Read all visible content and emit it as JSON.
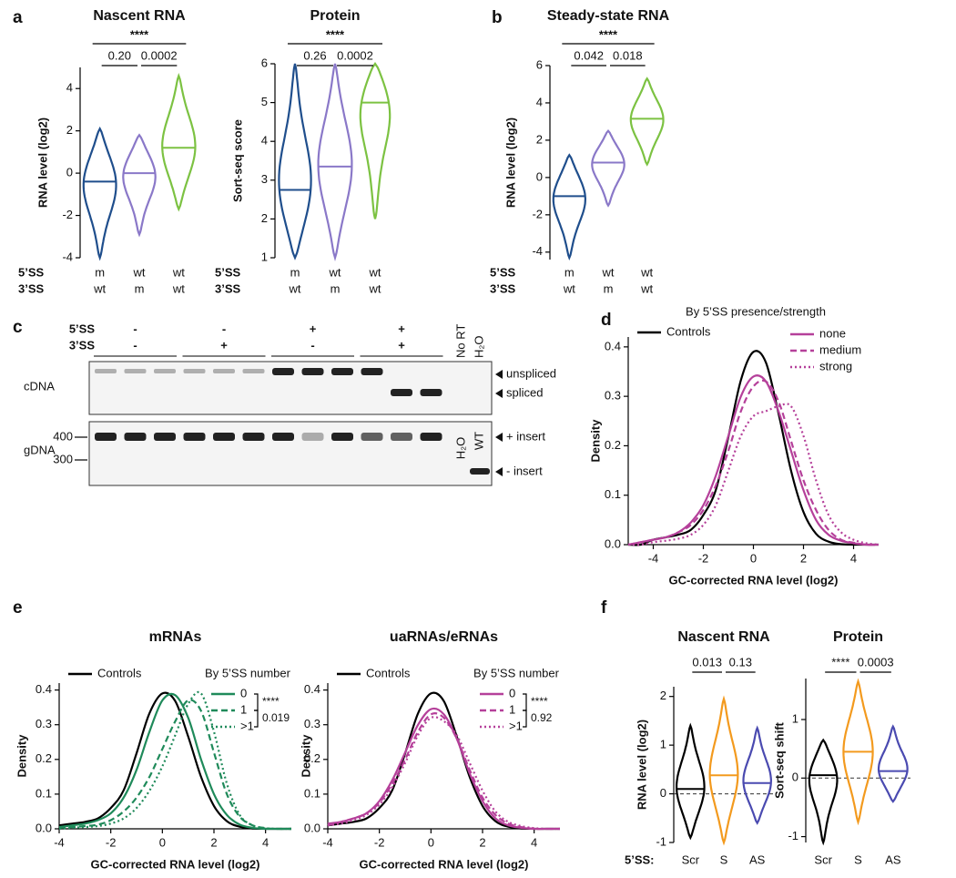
{
  "panel_letters": [
    "a",
    "b",
    "c",
    "d",
    "e",
    "f"
  ],
  "chart_data": [
    {
      "type": "violin",
      "title": "Nascent RNA",
      "y_label": "RNA level (log2)",
      "category_rows": [
        {
          "label": "5’SS",
          "labels": [
            "m",
            "wt",
            "wt"
          ]
        },
        {
          "label": "3’SS",
          "labels": [
            "wt",
            "m",
            "wt"
          ]
        }
      ],
      "colors": [
        "#1f4e8c",
        "#8a78c8",
        "#7cc242"
      ],
      "values": [
        -0.4,
        0,
        1.2
      ],
      "low": [
        -4,
        -2.9,
        -1.7
      ],
      "high": [
        2.1,
        1.8,
        4.6
      ],
      "ylim": [
        -4,
        5
      ],
      "yticks": [
        -4,
        -2,
        0,
        2,
        4
      ],
      "overall_annotation": "****",
      "pair_annotations": [
        "0.20",
        "0.0002"
      ]
    },
    {
      "type": "violin",
      "title": "Protein",
      "y_label": "Sort-seq score",
      "category_rows": [
        {
          "label": "5’SS",
          "labels": [
            "m",
            "wt",
            "wt"
          ]
        },
        {
          "label": "3’SS",
          "labels": [
            "wt",
            "m",
            "wt"
          ]
        }
      ],
      "colors": [
        "#1f4e8c",
        "#8a78c8",
        "#7cc242"
      ],
      "values": [
        2.75,
        3.35,
        5.0
      ],
      "low": [
        1,
        1,
        2.0
      ],
      "high": [
        6,
        6,
        6
      ],
      "ylim": [
        1,
        6
      ],
      "yticks": [
        1,
        2,
        3,
        4,
        5,
        6
      ],
      "overall_annotation": "****",
      "pair_annotations": [
        "0.26",
        "0.0002"
      ]
    },
    {
      "type": "violin",
      "title": "Steady-state RNA",
      "y_label": "RNA level (log2)",
      "category_rows": [
        {
          "label": "5’SS",
          "labels": [
            "m",
            "wt",
            "wt"
          ]
        },
        {
          "label": "3’SS",
          "labels": [
            "wt",
            "m",
            "wt"
          ]
        }
      ],
      "colors": [
        "#1f4e8c",
        "#8a78c8",
        "#7cc242"
      ],
      "values": [
        -1.0,
        0.8,
        3.15
      ],
      "low": [
        -4.3,
        -1.5,
        0.7
      ],
      "high": [
        1.2,
        2.5,
        5.3
      ],
      "ylim": [
        -4.4,
        6
      ],
      "yticks": [
        -4,
        -2,
        0,
        2,
        4,
        6
      ],
      "overall_annotation": "****",
      "pair_annotations": [
        "0.042",
        "0.018"
      ]
    },
    {
      "type": "gel",
      "row_labels": [
        "5’SS",
        "3’SS"
      ],
      "five_ss": [
        "-",
        "-",
        "+",
        "+"
      ],
      "three_ss": [
        "-",
        "+",
        "-",
        "+"
      ],
      "lane_labels": [
        "No RT",
        "H₂O"
      ],
      "blot_labels": [
        "cDNA",
        "gDNA"
      ],
      "marker_labels": [
        400,
        300
      ],
      "band_labels": [
        "unspliced",
        "spliced",
        "+ insert",
        "- insert"
      ],
      "inner_lane_labels": [
        "H₂O",
        "WT"
      ]
    },
    {
      "type": "density",
      "legend_title": "By 5’SS presence/strength",
      "x_label": "GC-corrected RNA level (log2)",
      "y_label": "Density",
      "x": [
        -5,
        -4.5,
        -4,
        -3.5,
        -3,
        -2.5,
        -2,
        -1.5,
        -1,
        -0.5,
        0,
        0.5,
        1,
        1.5,
        2,
        2.5,
        3,
        3.5,
        4,
        4.5,
        5
      ],
      "series": [
        {
          "name": "Controls",
          "color": "#000000",
          "style": "solid",
          "values": [
            0,
            0,
            0.01,
            0.015,
            0.02,
            0.03,
            0.06,
            0.111,
            0.218,
            0.333,
            0.39,
            0.368,
            0.266,
            0.15,
            0.066,
            0.022,
            0.006,
            0.001,
            0,
            0,
            0
          ]
        },
        {
          "name": "none",
          "color": "#b5409a",
          "style": "solid",
          "values": [
            0,
            0.005,
            0.01,
            0.015,
            0.025,
            0.045,
            0.08,
            0.14,
            0.22,
            0.3,
            0.34,
            0.33,
            0.27,
            0.19,
            0.11,
            0.05,
            0.02,
            0.008,
            0.003,
            0,
            0
          ]
        },
        {
          "name": "medium",
          "color": "#b5409a",
          "style": "dashed",
          "values": [
            0,
            0.005,
            0.01,
            0.015,
            0.025,
            0.04,
            0.07,
            0.12,
            0.19,
            0.27,
            0.32,
            0.33,
            0.29,
            0.21,
            0.13,
            0.07,
            0.03,
            0.01,
            0.004,
            0,
            0
          ]
        },
        {
          "name": "strong",
          "color": "#b5409a",
          "style": "dotted",
          "values": [
            0,
            0,
            0.005,
            0.008,
            0.012,
            0.02,
            0.04,
            0.08,
            0.15,
            0.22,
            0.26,
            0.27,
            0.28,
            0.28,
            0.22,
            0.13,
            0.06,
            0.025,
            0.01,
            0.003,
            0
          ]
        }
      ],
      "xlim": [
        -5,
        5
      ],
      "xticks": [
        -4,
        -2,
        0,
        2,
        4
      ],
      "ylim": [
        0,
        0.42
      ],
      "yticks": [
        {
          "value": 0,
          "label": "0.0"
        },
        0.1,
        0.2,
        0.3,
        0.4
      ]
    },
    {
      "type": "density",
      "title": "mRNAs",
      "legend_title": "By 5’SS number",
      "x_label": "GC-corrected RNA level (log2)",
      "y_label": "Density",
      "x": [
        -4,
        -3.5,
        -3,
        -2.5,
        -2,
        -1.5,
        -1,
        -0.5,
        0,
        0.5,
        1,
        1.5,
        2,
        2.5,
        3,
        3.5,
        4,
        4.5,
        5
      ],
      "series": [
        {
          "name": "Controls",
          "color": "#000000",
          "style": "solid",
          "values": [
            0.01,
            0.015,
            0.02,
            0.03,
            0.06,
            0.111,
            0.218,
            0.333,
            0.39,
            0.368,
            0.266,
            0.15,
            0.066,
            0.022,
            0.006,
            0.001,
            0,
            0,
            0
          ]
        },
        {
          "name": "0",
          "color": "#1f8a5a",
          "style": "solid",
          "values": [
            0.005,
            0.01,
            0.015,
            0.025,
            0.045,
            0.09,
            0.17,
            0.28,
            0.37,
            0.385,
            0.32,
            0.2,
            0.1,
            0.04,
            0.012,
            0.003,
            0,
            0,
            0
          ]
        },
        {
          "name": "1",
          "color": "#1f8a5a",
          "style": "dashed",
          "values": [
            0.003,
            0.005,
            0.008,
            0.012,
            0.025,
            0.05,
            0.09,
            0.15,
            0.23,
            0.31,
            0.37,
            0.34,
            0.22,
            0.1,
            0.035,
            0.01,
            0.002,
            0,
            0
          ]
        },
        {
          "name": ">1",
          "color": "#1f8a5a",
          "style": "dotted",
          "values": [
            0,
            0.003,
            0.005,
            0.008,
            0.015,
            0.03,
            0.06,
            0.11,
            0.18,
            0.27,
            0.36,
            0.39,
            0.28,
            0.13,
            0.04,
            0.01,
            0.002,
            0,
            0
          ]
        }
      ],
      "bracket_annotations": [
        "****",
        "0.019"
      ],
      "xlim": [
        -4,
        5
      ],
      "xticks": [
        -4,
        -2,
        0,
        2,
        4
      ],
      "ylim": [
        0,
        0.42
      ],
      "yticks": [
        {
          "value": 0,
          "label": "0.0"
        },
        0.1,
        0.2,
        0.3,
        0.4
      ]
    },
    {
      "type": "density",
      "title": "uaRNAs/eRNAs",
      "legend_title": "By 5’SS number",
      "x_label": "GC-corrected RNA level (log2)",
      "y_label": "Density",
      "x": [
        -4,
        -3.5,
        -3,
        -2.5,
        -2,
        -1.5,
        -1,
        -0.5,
        0,
        0.5,
        1,
        1.5,
        2,
        2.5,
        3,
        3.5,
        4,
        4.5,
        5
      ],
      "series": [
        {
          "name": "Controls",
          "color": "#000000",
          "style": "solid",
          "values": [
            0.01,
            0.015,
            0.02,
            0.03,
            0.06,
            0.111,
            0.218,
            0.333,
            0.39,
            0.368,
            0.266,
            0.15,
            0.066,
            0.022,
            0.006,
            0.001,
            0,
            0,
            0
          ]
        },
        {
          "name": "0",
          "color": "#b5409a",
          "style": "solid",
          "values": [
            0.015,
            0.02,
            0.03,
            0.045,
            0.08,
            0.14,
            0.22,
            0.3,
            0.345,
            0.33,
            0.26,
            0.16,
            0.08,
            0.03,
            0.01,
            0.003,
            0,
            0,
            0
          ]
        },
        {
          "name": "1",
          "color": "#b5409a",
          "style": "dashed",
          "values": [
            0.01,
            0.02,
            0.03,
            0.045,
            0.075,
            0.13,
            0.2,
            0.28,
            0.33,
            0.32,
            0.26,
            0.17,
            0.09,
            0.04,
            0.015,
            0.005,
            0,
            0,
            0
          ]
        },
        {
          "name": ">1",
          "color": "#b5409a",
          "style": "dotted",
          "values": [
            0.01,
            0.015,
            0.025,
            0.04,
            0.07,
            0.12,
            0.19,
            0.27,
            0.32,
            0.31,
            0.27,
            0.19,
            0.11,
            0.05,
            0.02,
            0.008,
            0.002,
            0,
            0
          ]
        }
      ],
      "bracket_annotations": [
        "****",
        "0.92"
      ],
      "xlim": [
        -4,
        5
      ],
      "xticks": [
        -4,
        -2,
        0,
        2,
        4
      ],
      "ylim": [
        0,
        0.42
      ],
      "yticks": [
        {
          "value": 0,
          "label": "0.0"
        },
        0.1,
        0.2,
        0.3,
        0.4
      ]
    },
    {
      "type": "violin",
      "title": "Nascent RNA",
      "y_label": "RNA level (log2)",
      "category_rows": [
        {
          "label": "5’SS:",
          "labels": [
            "Scr",
            "S",
            "AS"
          ]
        }
      ],
      "colors": [
        "#000000",
        "#f39a1e",
        "#4a4ab0"
      ],
      "values": [
        0.1,
        0.38,
        0.22
      ],
      "low": [
        -0.9,
        -1,
        -0.6
      ],
      "high": [
        1.4,
        1.95,
        1.35
      ],
      "ylim": [
        -1,
        2.2
      ],
      "yticks": [
        -1,
        0,
        1,
        2
      ],
      "zero_line": true,
      "pair_annotations": [
        "0.013",
        "0.13"
      ]
    },
    {
      "type": "violin",
      "title": "Protein",
      "y_label": "Sort-seq shift",
      "category_rows": [
        {
          "labels": [
            "Scr",
            "S",
            "AS"
          ]
        }
      ],
      "colors": [
        "#000000",
        "#f39a1e",
        "#4a4ab0"
      ],
      "values": [
        0.05,
        0.45,
        0.12
      ],
      "low": [
        -1.1,
        -0.75,
        -0.4
      ],
      "high": [
        0.65,
        1.65,
        0.88
      ],
      "ylim": [
        -1.1,
        1.7
      ],
      "yticks": [
        -1,
        0,
        1
      ],
      "zero_line": true,
      "pair_annotations": [
        "****",
        "0.0003"
      ]
    }
  ]
}
